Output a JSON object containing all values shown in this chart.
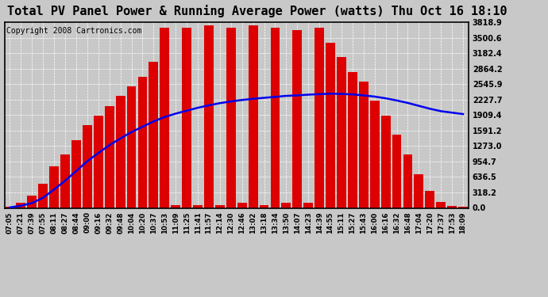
{
  "title": "Total PV Panel Power & Running Average Power (watts) Thu Oct 16 18:10",
  "copyright": "Copyright 2008 Cartronics.com",
  "background_color": "#c8c8c8",
  "plot_bg_color": "#c8c8c8",
  "ymax": 3818.9,
  "ymin": 0.0,
  "yticks": [
    0.0,
    318.2,
    636.5,
    954.7,
    1273.0,
    1591.2,
    1909.4,
    2227.7,
    2545.9,
    2864.2,
    3182.4,
    3500.6,
    3818.9
  ],
  "ytick_labels": [
    "0.0",
    "318.2",
    "636.5",
    "954.7",
    "1273.0",
    "1591.2",
    "1909.4",
    "2227.7",
    "2545.9",
    "2864.2",
    "3182.4",
    "3500.6",
    "3818.9"
  ],
  "x_labels": [
    "07:05",
    "07:21",
    "07:39",
    "07:55",
    "08:11",
    "08:27",
    "08:44",
    "09:00",
    "09:16",
    "09:32",
    "09:48",
    "10:04",
    "10:20",
    "10:37",
    "10:53",
    "11:09",
    "11:25",
    "11:41",
    "11:57",
    "12:14",
    "12:30",
    "12:46",
    "13:02",
    "13:18",
    "13:34",
    "13:50",
    "14:07",
    "14:23",
    "14:39",
    "14:55",
    "15:11",
    "15:27",
    "15:43",
    "16:00",
    "16:16",
    "16:32",
    "16:48",
    "17:04",
    "17:20",
    "17:37",
    "17:53",
    "18:09"
  ],
  "pv_color": "#dd0000",
  "avg_color": "#0000ee",
  "grid_color": "#ffffff",
  "title_fontsize": 11,
  "copyright_fontsize": 7,
  "pv_data": [
    30,
    100,
    250,
    500,
    850,
    1100,
    1400,
    1700,
    1900,
    2100,
    2300,
    2500,
    2700,
    3000,
    3700,
    50,
    3700,
    50,
    3750,
    50,
    3700,
    100,
    3750,
    50,
    3700,
    100,
    3650,
    100,
    3700,
    3400,
    3100,
    2800,
    2600,
    2200,
    1900,
    1500,
    1100,
    700,
    350,
    120,
    40,
    20
  ],
  "ra_data": [
    10,
    45,
    100,
    210,
    380,
    560,
    760,
    960,
    1130,
    1290,
    1430,
    1560,
    1670,
    1780,
    1870,
    1940,
    2000,
    2060,
    2110,
    2155,
    2190,
    2220,
    2245,
    2265,
    2285,
    2305,
    2315,
    2330,
    2340,
    2350,
    2345,
    2335,
    2315,
    2290,
    2255,
    2210,
    2160,
    2100,
    2040,
    1990,
    1960,
    1930
  ]
}
